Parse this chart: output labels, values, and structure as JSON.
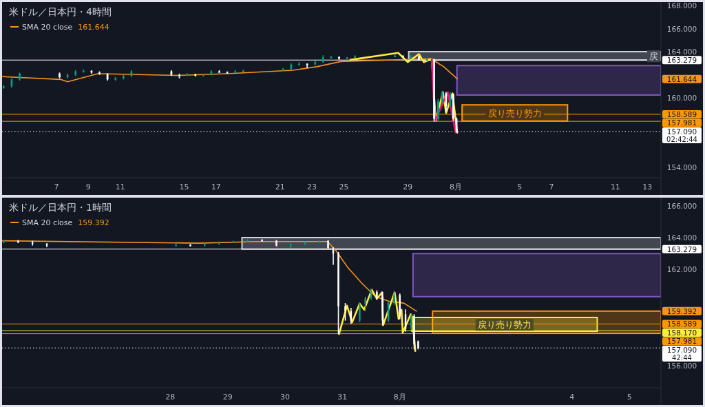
{
  "chart_data": [
    {
      "type": "candlestick",
      "title": "米ドル／日本円・4時間",
      "legend": "top left",
      "xlim": [
        "--07-03T14:24",
        "--08-13T20:24"
      ],
      "ylim": [
        153.1,
        168.3
      ],
      "xticks": [
        {
          "value": "--07-07",
          "label": "7"
        },
        {
          "value": "--07-09",
          "label": "9"
        },
        {
          "value": "--07-11",
          "label": "11"
        },
        {
          "value": "--07-15",
          "label": "15"
        },
        {
          "value": "--07-17",
          "label": "17"
        },
        {
          "value": "--07-21",
          "label": "21"
        },
        {
          "value": "--07-23",
          "label": "23"
        },
        {
          "value": "--07-25",
          "label": "25"
        },
        {
          "value": "--07-29",
          "label": "29"
        },
        {
          "value": "--08-01",
          "label": "8月"
        },
        {
          "value": "--08-05",
          "label": "5"
        },
        {
          "value": "--08-07",
          "label": "7"
        },
        {
          "value": "--08-11",
          "label": "11"
        },
        {
          "value": "--08-13",
          "label": "13"
        }
      ],
      "yticks": [
        {
          "value": 154,
          "label": "154.000"
        },
        {
          "value": 160,
          "label": "160.000"
        },
        {
          "value": 164,
          "label": "164.000"
        },
        {
          "value": 166,
          "label": "166.000"
        },
        {
          "value": 168,
          "label": "168.000"
        }
      ],
      "x": [
        "--07-03T16:48",
        "--07-04T04:48",
        "--07-04T16:48",
        "--07-07T04:48",
        "--07-07T16:48",
        "--07-08T04:48",
        "--07-08T16:48",
        "--07-09T04:48",
        "--07-09T16:48",
        "--07-10T04:48",
        "--07-10T16:48",
        "--07-11T04:48",
        "--07-11T16:48",
        "--07-14T04:48",
        "--07-14T16:48",
        "--07-15T04:48",
        "--07-15T16:48",
        "--07-16T04:48",
        "--07-16T16:48",
        "--07-17T04:48",
        "--07-17T16:48",
        "--07-18T04:48",
        "--07-18T16:48",
        "--07-21T04:48",
        "--07-21T16:48",
        "--07-22T04:48",
        "--07-22T16:48",
        "--07-23T04:48",
        "--07-23T16:48",
        "--07-24T04:48",
        "--07-24T16:48",
        "--07-25T04:48",
        "--07-25T16:48",
        "--07-28T04:48",
        "--07-28T16:48",
        "--07-29T04:48",
        "--07-29T16:48",
        "--07-30T04:48",
        "--07-30T15:36",
        "--07-30T21:36",
        "--07-31T03:36",
        "--07-31T09:36",
        "--07-31T15:36",
        "--07-31T20:24",
        "--08-01T01:12"
      ],
      "ohlc": [
        [
          160.9,
          161.1,
          160.8,
          161.0
        ],
        [
          161.0,
          161.7,
          160.9,
          161.6
        ],
        [
          161.6,
          162.2,
          161.5,
          162.1
        ],
        [
          162.1,
          162.2,
          161.7,
          161.8
        ],
        [
          161.8,
          162.1,
          161.7,
          162.0
        ],
        [
          162.0,
          162.4,
          161.9,
          162.3
        ],
        [
          162.3,
          162.45,
          162.2,
          162.35
        ],
        [
          162.35,
          162.4,
          162.1,
          162.2
        ],
        [
          162.2,
          162.3,
          162.0,
          162.1
        ],
        [
          162.1,
          162.15,
          161.5,
          161.6
        ],
        [
          161.6,
          161.8,
          161.5,
          161.7
        ],
        [
          161.7,
          162.0,
          161.6,
          161.9
        ],
        [
          161.9,
          162.4,
          161.8,
          162.3
        ],
        [
          162.3,
          162.4,
          161.9,
          162.0
        ],
        [
          162.0,
          162.1,
          161.7,
          161.95
        ],
        [
          161.95,
          162.15,
          161.9,
          162.05
        ],
        [
          162.05,
          162.1,
          161.85,
          161.95
        ],
        [
          161.95,
          162.1,
          161.9,
          162.0
        ],
        [
          162.0,
          162.4,
          161.95,
          162.3
        ],
        [
          162.3,
          162.4,
          162.2,
          162.25
        ],
        [
          162.25,
          162.3,
          162.1,
          162.2
        ],
        [
          162.2,
          162.4,
          162.15,
          162.3
        ],
        [
          162.3,
          162.45,
          162.25,
          162.35
        ],
        [
          162.35,
          162.6,
          162.3,
          162.5
        ],
        [
          162.5,
          163.0,
          162.45,
          162.9
        ],
        [
          162.9,
          163.1,
          162.85,
          162.95
        ],
        [
          162.95,
          163.0,
          162.6,
          162.9
        ],
        [
          162.9,
          163.2,
          162.85,
          163.1
        ],
        [
          163.1,
          163.7,
          163.05,
          163.5
        ],
        [
          163.5,
          163.65,
          163.45,
          163.55
        ],
        [
          163.55,
          163.6,
          163.3,
          163.4
        ],
        [
          163.4,
          163.55,
          163.35,
          163.5
        ],
        [
          163.5,
          163.7,
          163.45,
          163.6
        ],
        [
          163.6,
          163.75,
          163.55,
          163.65
        ],
        [
          163.65,
          163.7,
          163.45,
          163.5
        ],
        [
          163.5,
          163.7,
          163.45,
          163.6
        ],
        [
          163.6,
          163.65,
          163.25,
          163.3
        ],
        [
          163.3,
          163.45,
          163.25,
          163.35
        ],
        [
          163.35,
          163.4,
          157.95,
          158.2
        ],
        [
          158.2,
          159.9,
          158.0,
          159.7
        ],
        [
          159.7,
          160.6,
          159.5,
          160.4
        ],
        [
          160.4,
          160.5,
          158.8,
          159.3
        ],
        [
          159.3,
          160.5,
          159.2,
          160.3
        ],
        [
          160.3,
          160.4,
          158.0,
          158.2
        ],
        [
          158.2,
          158.3,
          157.0,
          157.09
        ]
      ],
      "series": [
        {
          "name": "SMA 20 close",
          "type": "line",
          "color": "#f7931a",
          "x": [
            "--07-03T14:24",
            "--07-07T07:12",
            "--07-07T16:48",
            "--07-09T14:24",
            "--07-14T14:24",
            "--07-17T16:48",
            "--07-21T19:12",
            "--07-23T07:12",
            "--07-24T19:12",
            "--07-30T10:48",
            "--07-31T06:00",
            "--08-01T02:24"
          ],
          "values": [
            161.85,
            161.6,
            161.4,
            162.1,
            161.95,
            162.1,
            162.4,
            162.7,
            163.15,
            163.4,
            162.7,
            161.644
          ]
        },
        {
          "type": "line",
          "color": "#ffeb3b",
          "x": [
            "--07-25T09:36",
            "--07-28T09:36",
            "--07-29T00:00",
            "--07-29T16:48",
            "--07-30T00:00",
            "--07-30T12:00",
            "--07-30T18:00",
            "--07-31T04:48",
            "--07-31T09:36",
            "--07-31T19:12",
            "--08-01T02:24"
          ],
          "values": [
            163.3,
            163.9,
            163.1,
            163.8,
            163.1,
            163.4,
            158.0,
            160.5,
            158.7,
            160.4,
            157.0
          ]
        },
        {
          "type": "line",
          "color": "#f50f6c",
          "x": [
            "--07-30T12:00",
            "--07-30T16:48",
            "--07-31T12:00",
            "--08-01T00:00"
          ],
          "values": [
            163.4,
            158.0,
            160.5,
            157.0
          ]
        },
        {
          "name": "戻",
          "type": "area",
          "color": "#d1d4dc",
          "x": [
            "--07-29T01:26",
            "--08-13T20:24"
          ],
          "lower": [
            163.28,
            163.28
          ],
          "upper": [
            164.0,
            164.0
          ],
          "values": [
            null,
            null
          ]
        },
        {
          "type": "area",
          "color": "#7e57c2",
          "x": [
            "--08-01T01:55",
            "--08-13T20:24"
          ],
          "lower": [
            160.25,
            160.25
          ],
          "upper": [
            162.8,
            162.8
          ],
          "values": [
            null,
            null
          ]
        },
        {
          "name": "戻り売り勢力",
          "type": "area",
          "color": "#ff9800",
          "x": [
            "--08-01T09:36",
            "--08-08T00:00"
          ],
          "lower": [
            158.0,
            158.0
          ],
          "upper": [
            159.4,
            159.4
          ],
          "values": [
            null,
            null
          ]
        }
      ],
      "ref_lines": [
        {
          "axis": "y",
          "value": 163.279,
          "label": "163.279",
          "color": "#ffffff"
        },
        {
          "axis": "y",
          "value": 158.589,
          "label": "158.589",
          "color": "#ff9800"
        },
        {
          "axis": "y",
          "value": 157.981,
          "label": "157.981",
          "color": "#ff9800"
        },
        {
          "axis": "y",
          "value": 157.09,
          "label": "157.090",
          "color": "#ffffff",
          "line_style": "dotted"
        }
      ],
      "annotations": [
        "161.644",
        "161.644",
        "02:42:44"
      ]
    },
    {
      "type": "candlestick",
      "title": "米ドル／日本円・1時間",
      "legend": "top left",
      "xlim": [
        "--07-25T01:40",
        "--08-05T13:12"
      ],
      "ylim": [
        154.6,
        166.5
      ],
      "xticks": [
        {
          "value": "--07-28",
          "label": "28"
        },
        {
          "value": "--07-29",
          "label": "29"
        },
        {
          "value": "--07-30",
          "label": "30"
        },
        {
          "value": "--07-31",
          "label": "31"
        },
        {
          "value": "--08-01",
          "label": "8月"
        },
        {
          "value": "--08-04",
          "label": "4"
        },
        {
          "value": "--08-05",
          "label": "5"
        }
      ],
      "yticks": [
        {
          "value": 156,
          "label": "156.000"
        },
        {
          "value": 162,
          "label": "162.000"
        },
        {
          "value": 164,
          "label": "164.000"
        },
        {
          "value": 166,
          "label": "166.000"
        }
      ],
      "x": [
        "--07-25T02:24",
        "--07-25T08:24",
        "--07-25T14:24",
        "--07-25T20:24",
        "--07-28T02:24",
        "--07-28T08:24",
        "--07-28T14:24",
        "--07-28T20:24",
        "--07-29T02:24",
        "--07-29T08:24",
        "--07-29T14:24",
        "--07-29T20:24",
        "--07-30T02:24",
        "--07-30T08:24",
        "--07-30T14:24",
        "--07-30T18:00",
        "--07-30T20:10",
        "--07-30T22:19",
        "--07-31T01:12",
        "--07-31T03:36",
        "--07-31T07:12",
        "--07-31T09:36",
        "--07-31T12:00",
        "--07-31T14:24",
        "--07-31T16:48",
        "--07-31T19:12",
        "--07-31T21:36",
        "--08-01T00:00",
        "--08-01T02:24",
        "--08-01T04:48",
        "--08-01T06:00",
        "--08-01T07:41"
      ],
      "ohlc": [
        [
          163.7,
          163.85,
          163.65,
          163.8
        ],
        [
          163.8,
          163.85,
          163.65,
          163.7
        ],
        [
          163.7,
          163.8,
          163.5,
          163.6
        ],
        [
          163.6,
          163.65,
          163.4,
          163.5
        ],
        [
          163.5,
          163.6,
          163.45,
          163.55
        ],
        [
          163.55,
          163.6,
          163.45,
          163.5
        ],
        [
          163.5,
          163.65,
          163.45,
          163.6
        ],
        [
          163.6,
          163.75,
          163.55,
          163.7
        ],
        [
          163.7,
          163.8,
          163.65,
          163.75
        ],
        [
          163.75,
          163.9,
          163.7,
          163.85
        ],
        [
          163.85,
          163.9,
          163.75,
          163.8
        ],
        [
          163.8,
          163.85,
          163.45,
          163.5
        ],
        [
          163.5,
          163.65,
          163.3,
          163.6
        ],
        [
          163.6,
          163.75,
          163.55,
          163.7
        ],
        [
          163.7,
          163.85,
          163.65,
          163.8
        ],
        [
          163.8,
          163.85,
          163.3,
          163.35
        ],
        [
          163.35,
          163.4,
          162.3,
          163.0
        ],
        [
          163.0,
          163.1,
          157.95,
          159.7
        ],
        [
          159.7,
          159.9,
          158.8,
          159.4
        ],
        [
          159.4,
          159.6,
          158.6,
          158.8
        ],
        [
          158.8,
          159.9,
          158.7,
          159.8
        ],
        [
          159.8,
          160.3,
          159.4,
          160.2
        ],
        [
          160.2,
          160.8,
          160.1,
          160.6
        ],
        [
          160.6,
          160.7,
          160.1,
          160.3
        ],
        [
          160.3,
          160.6,
          158.5,
          158.8
        ],
        [
          158.8,
          160.0,
          158.7,
          159.9
        ],
        [
          159.9,
          160.6,
          159.8,
          160.4
        ],
        [
          160.4,
          160.5,
          158.9,
          159.2
        ],
        [
          159.2,
          159.5,
          158.1,
          158.3
        ],
        [
          158.3,
          159.2,
          158.2,
          159.1
        ],
        [
          159.1,
          159.2,
          157.0,
          157.3
        ],
        [
          157.5,
          157.55,
          157.0,
          157.09
        ]
      ],
      "series": [
        {
          "name": "SMA 20 close",
          "type": "line",
          "color": "#f7931a",
          "x": [
            "--07-25T01:40",
            "--07-28T12:00",
            "--07-29T12:00",
            "--07-30T17:46",
            "--07-30T21:22",
            "--07-31T02:24",
            "--07-31T08:24",
            "--07-31T13:55",
            "--07-31T19:41",
            "--08-01T01:41",
            "--08-01T06:58"
          ],
          "values": [
            163.8,
            163.65,
            163.75,
            163.75,
            163.17,
            162.1,
            161.1,
            160.3,
            160.0,
            159.9,
            159.392
          ]
        },
        {
          "type": "line",
          "color": "#ffeb3b",
          "x": [
            "--07-30T22:34",
            "--07-31T01:55",
            "--07-31T04:05",
            "--07-31T07:12",
            "--07-31T09:07",
            "--07-31T12:14",
            "--07-31T14:24",
            "--07-31T16:34",
            "--07-31T17:02",
            "--07-31T21:50",
            "--07-31T23:31",
            "--08-01T00:43",
            "--08-01T01:12",
            "--08-01T04:34",
            "--08-01T05:17",
            "--08-01T06:29"
          ],
          "values": [
            157.96,
            159.74,
            158.7,
            159.87,
            159.48,
            160.74,
            160.17,
            160.57,
            158.52,
            160.57,
            158.9,
            159.48,
            158.04,
            159.2,
            159.0,
            156.9
          ]
        },
        {
          "type": "area",
          "color": "#d1d4dc",
          "x": [
            "--07-29T06:00",
            "--08-05T13:12"
          ],
          "lower": [
            163.28,
            163.28
          ],
          "upper": [
            164.0,
            164.0
          ],
          "values": [
            null,
            null
          ]
        },
        {
          "type": "area",
          "color": "#7e57c2",
          "x": [
            "--08-01T05:31",
            "--08-05T13:12"
          ],
          "lower": [
            160.3,
            160.3
          ],
          "upper": [
            163.0,
            163.0
          ],
          "values": [
            null,
            null
          ]
        },
        {
          "type": "area",
          "color": "#ff9800",
          "x": [
            "--08-01T13:41",
            "--08-05T13:12"
          ],
          "lower": [
            158.0,
            158.0
          ],
          "upper": [
            159.4,
            159.4
          ],
          "values": [
            null,
            null
          ]
        },
        {
          "name": "戻り売り勢力",
          "type": "area",
          "color": "#ffeb3b",
          "x": [
            "--08-01T05:02",
            "--08-04T10:34"
          ],
          "lower": [
            158.13,
            158.13
          ],
          "upper": [
            159.0,
            159.0
          ],
          "values": [
            null,
            null
          ]
        }
      ],
      "ref_lines": [
        {
          "axis": "y",
          "value": 163.279,
          "label": "163.279",
          "color": "#ffffff"
        },
        {
          "axis": "y",
          "value": 158.589,
          "label": "158.589",
          "color": "#ff9800"
        },
        {
          "axis": "y",
          "value": 158.17,
          "label": "158.170",
          "color": "#ffeb3b"
        },
        {
          "axis": "y",
          "value": 157.981,
          "label": "157.981",
          "color": "#ff9800"
        },
        {
          "axis": "y",
          "value": 157.09,
          "label": "157.090",
          "color": "#ffffff",
          "line_style": "dotted"
        }
      ],
      "annotations": [
        "159.392",
        "159.392",
        "42:44"
      ]
    }
  ]
}
